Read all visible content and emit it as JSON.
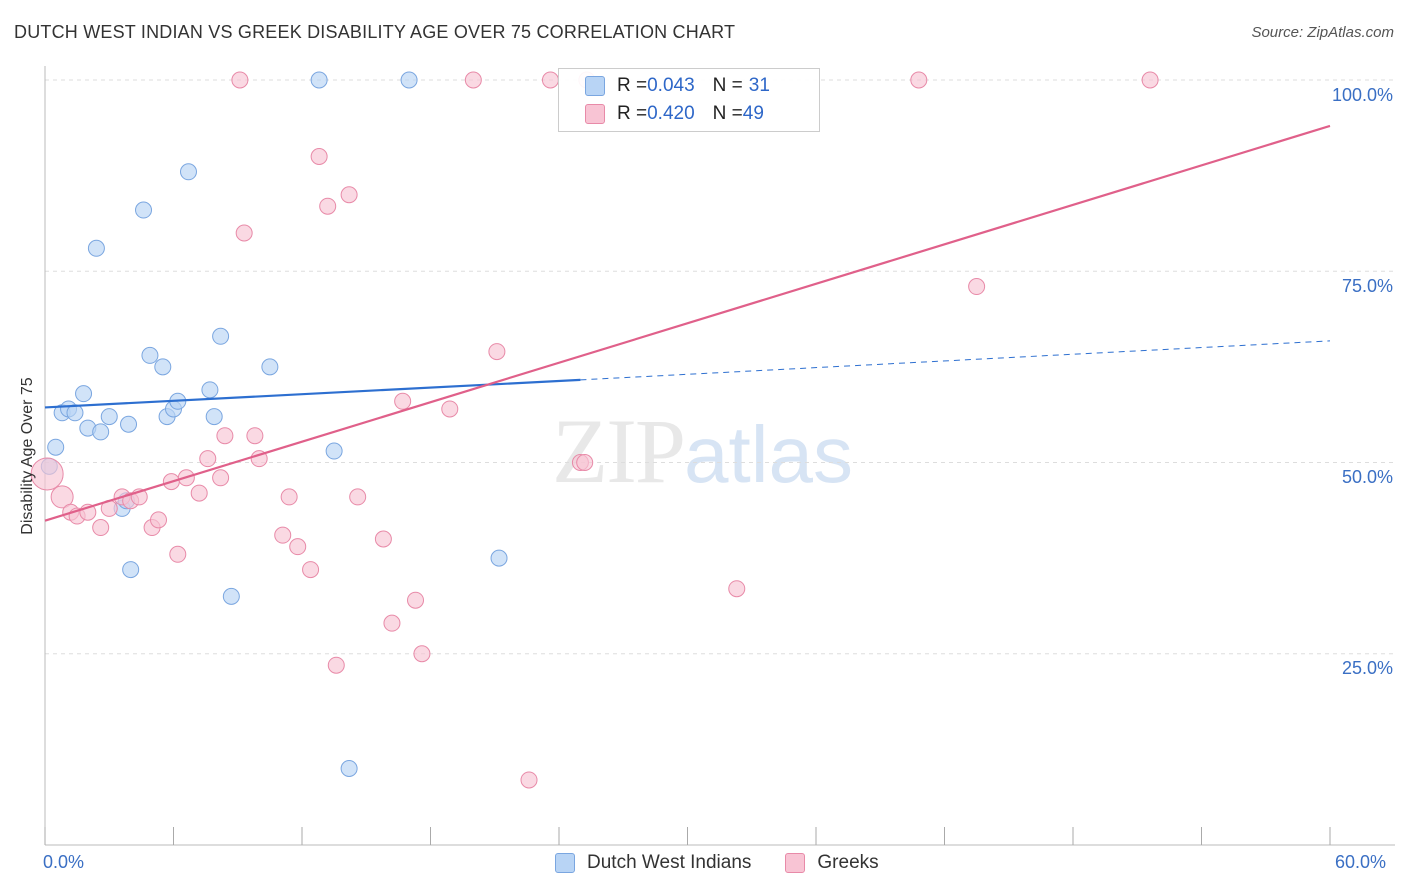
{
  "header": {
    "title": "DUTCH WEST INDIAN VS GREEK DISABILITY AGE OVER 75 CORRELATION CHART",
    "source": "Source: ZipAtlas.com"
  },
  "legend": {
    "rows": [
      {
        "r_label": "R = ",
        "r_value": "0.043",
        "n_label": "N = ",
        "n_value": "31"
      },
      {
        "r_label": "R = ",
        "r_value": "0.420",
        "n_label": "N = ",
        "n_value": "49"
      }
    ]
  },
  "bottom_legend": {
    "series1": "Dutch West Indians",
    "series2": "Greeks"
  },
  "watermark": {
    "zip": "ZIP",
    "atlas": "atlas"
  },
  "colors": {
    "blue_fill": "#b8d4f5",
    "blue_stroke": "#7aa6e0",
    "blue_line": "#2d6fd0",
    "pink_fill": "#f8c4d4",
    "pink_stroke": "#e88aa8",
    "pink_line": "#e0608a",
    "axis_text": "#3a6fc4",
    "grid": "#dddddd"
  },
  "chart_data": {
    "type": "scatter",
    "title": "DUTCH WEST INDIAN VS GREEK DISABILITY AGE OVER 75 CORRELATION CHART",
    "xlabel": "",
    "ylabel": "Disability Age Over 75",
    "xlim": [
      0,
      60
    ],
    "ylim": [
      0,
      102.5
    ],
    "x_tick_labels": [
      "0.0%",
      "60.0%"
    ],
    "y_ticks": [
      25,
      50,
      75,
      100
    ],
    "y_tick_labels": [
      "25.0%",
      "50.0%",
      "75.0%",
      "100.0%"
    ],
    "grid": true,
    "legend_position": "top-center",
    "series": [
      {
        "name": "Dutch West Indians",
        "color": "#b8d4f5",
        "r": 0.043,
        "n": 31,
        "points": [
          [
            0.2,
            49.5
          ],
          [
            0.5,
            52
          ],
          [
            0.8,
            56.5
          ],
          [
            1.1,
            57
          ],
          [
            1.4,
            56.5
          ],
          [
            1.8,
            59
          ],
          [
            2.0,
            54.5
          ],
          [
            2.4,
            78
          ],
          [
            2.6,
            54
          ],
          [
            3.0,
            56
          ],
          [
            3.6,
            44
          ],
          [
            3.8,
            45
          ],
          [
            3.9,
            55
          ],
          [
            4.0,
            36
          ],
          [
            4.6,
            83
          ],
          [
            4.9,
            64
          ],
          [
            5.5,
            62.5
          ],
          [
            5.7,
            56
          ],
          [
            6.0,
            57
          ],
          [
            6.2,
            58
          ],
          [
            6.7,
            88
          ],
          [
            7.7,
            59.5
          ],
          [
            7.9,
            56
          ],
          [
            8.2,
            66.5
          ],
          [
            8.7,
            32.5
          ],
          [
            10.5,
            62.5
          ],
          [
            12.8,
            100
          ],
          [
            13.5,
            51.5
          ],
          [
            14.2,
            10
          ],
          [
            17.0,
            100
          ],
          [
            21.2,
            37.5
          ]
        ],
        "trend": {
          "x": [
            0,
            25
          ],
          "y": [
            57.2,
            60.8
          ],
          "dashed_to": [
            60,
            65.9
          ]
        }
      },
      {
        "name": "Greeks",
        "color": "#f8c4d4",
        "r": 0.42,
        "n": 49,
        "points": [
          [
            0.1,
            48.5
          ],
          [
            0.8,
            45.5
          ],
          [
            1.2,
            43.5
          ],
          [
            1.5,
            43
          ],
          [
            2.0,
            43.5
          ],
          [
            2.6,
            41.5
          ],
          [
            3.0,
            44
          ],
          [
            3.6,
            45.5
          ],
          [
            4.0,
            45
          ],
          [
            4.4,
            45.5
          ],
          [
            5.0,
            41.5
          ],
          [
            5.3,
            42.5
          ],
          [
            5.9,
            47.5
          ],
          [
            6.2,
            38
          ],
          [
            6.6,
            48
          ],
          [
            7.2,
            46
          ],
          [
            7.6,
            50.5
          ],
          [
            8.2,
            48
          ],
          [
            8.4,
            53.5
          ],
          [
            9.1,
            100
          ],
          [
            9.3,
            80
          ],
          [
            9.8,
            53.5
          ],
          [
            10.0,
            50.5
          ],
          [
            11.1,
            40.5
          ],
          [
            11.4,
            45.5
          ],
          [
            11.8,
            39
          ],
          [
            12.4,
            36
          ],
          [
            12.8,
            90
          ],
          [
            13.2,
            83.5
          ],
          [
            13.6,
            23.5
          ],
          [
            14.2,
            85
          ],
          [
            14.6,
            45.5
          ],
          [
            15.8,
            40
          ],
          [
            16.2,
            29
          ],
          [
            16.7,
            58
          ],
          [
            17.3,
            32
          ],
          [
            17.6,
            25
          ],
          [
            18.9,
            57
          ],
          [
            20.0,
            100
          ],
          [
            21.1,
            64.5
          ],
          [
            22.6,
            8.5
          ],
          [
            23.6,
            100
          ],
          [
            25.0,
            50
          ],
          [
            25.2,
            50
          ],
          [
            25.3,
            100
          ],
          [
            32.3,
            33.5
          ],
          [
            40.8,
            100
          ],
          [
            43.5,
            73
          ],
          [
            51.6,
            100
          ]
        ],
        "trend": {
          "x": [
            0,
            60
          ],
          "y": [
            42.4,
            94
          ]
        }
      }
    ]
  }
}
